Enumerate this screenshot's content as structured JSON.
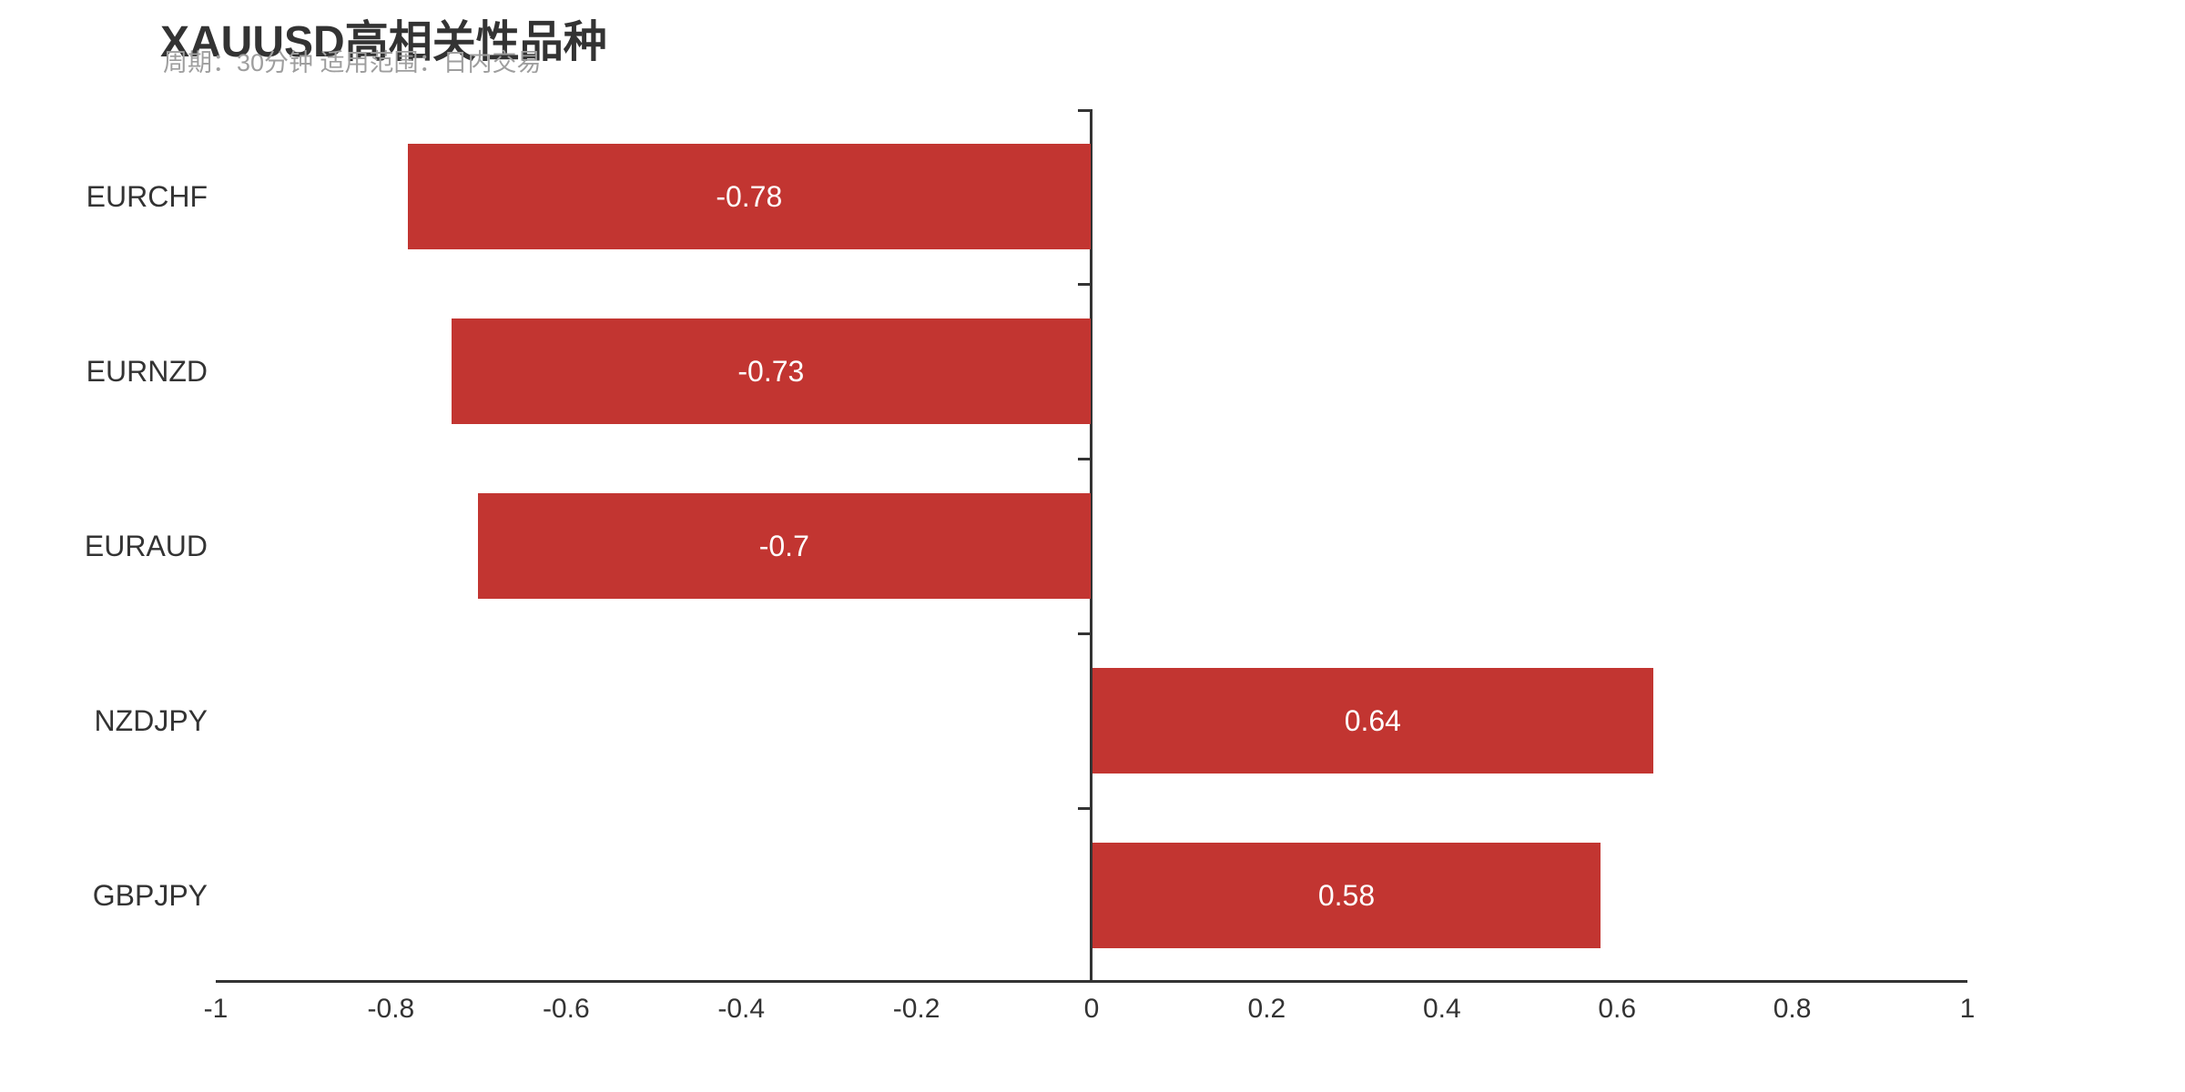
{
  "header": {
    "title": "XAUUSD高相关性品种",
    "subtitle": "周期：30分钟 适用范围：日内交易"
  },
  "chart_data": {
    "type": "bar",
    "orientation": "horizontal",
    "title": "XAUUSD高相关性品种",
    "subtitle": "周期：30分钟 适用范围：日内交易",
    "categories": [
      "EURCHF",
      "EURNZD",
      "EURAUD",
      "NZDJPY",
      "GBPJPY"
    ],
    "values": [
      -0.78,
      -0.73,
      -0.7,
      0.64,
      0.58
    ],
    "value_labels": [
      "-0.78",
      "-0.73",
      "-0.7",
      "0.64",
      "0.58"
    ],
    "value_label_position": "inside-center",
    "xlabel": "",
    "ylabel": "",
    "xlim": [
      -1,
      1
    ],
    "x_tick_values": [
      -1,
      -0.8,
      -0.6,
      -0.4,
      -0.2,
      0,
      0.2,
      0.4,
      0.6,
      0.8,
      1
    ],
    "x_tick_labels": [
      "-1",
      "-0.8",
      "-0.6",
      "-0.4",
      "-0.2",
      "0",
      "0.2",
      "0.4",
      "0.6",
      "0.8",
      "1"
    ],
    "grid": "off",
    "legend": "none",
    "bar_color": "#c23531",
    "bar_label_color": "#ffffff",
    "axis_color": "#333333",
    "title_color": "#333333",
    "subtitle_color": "#9e9e9e",
    "background_color": "#ffffff"
  }
}
